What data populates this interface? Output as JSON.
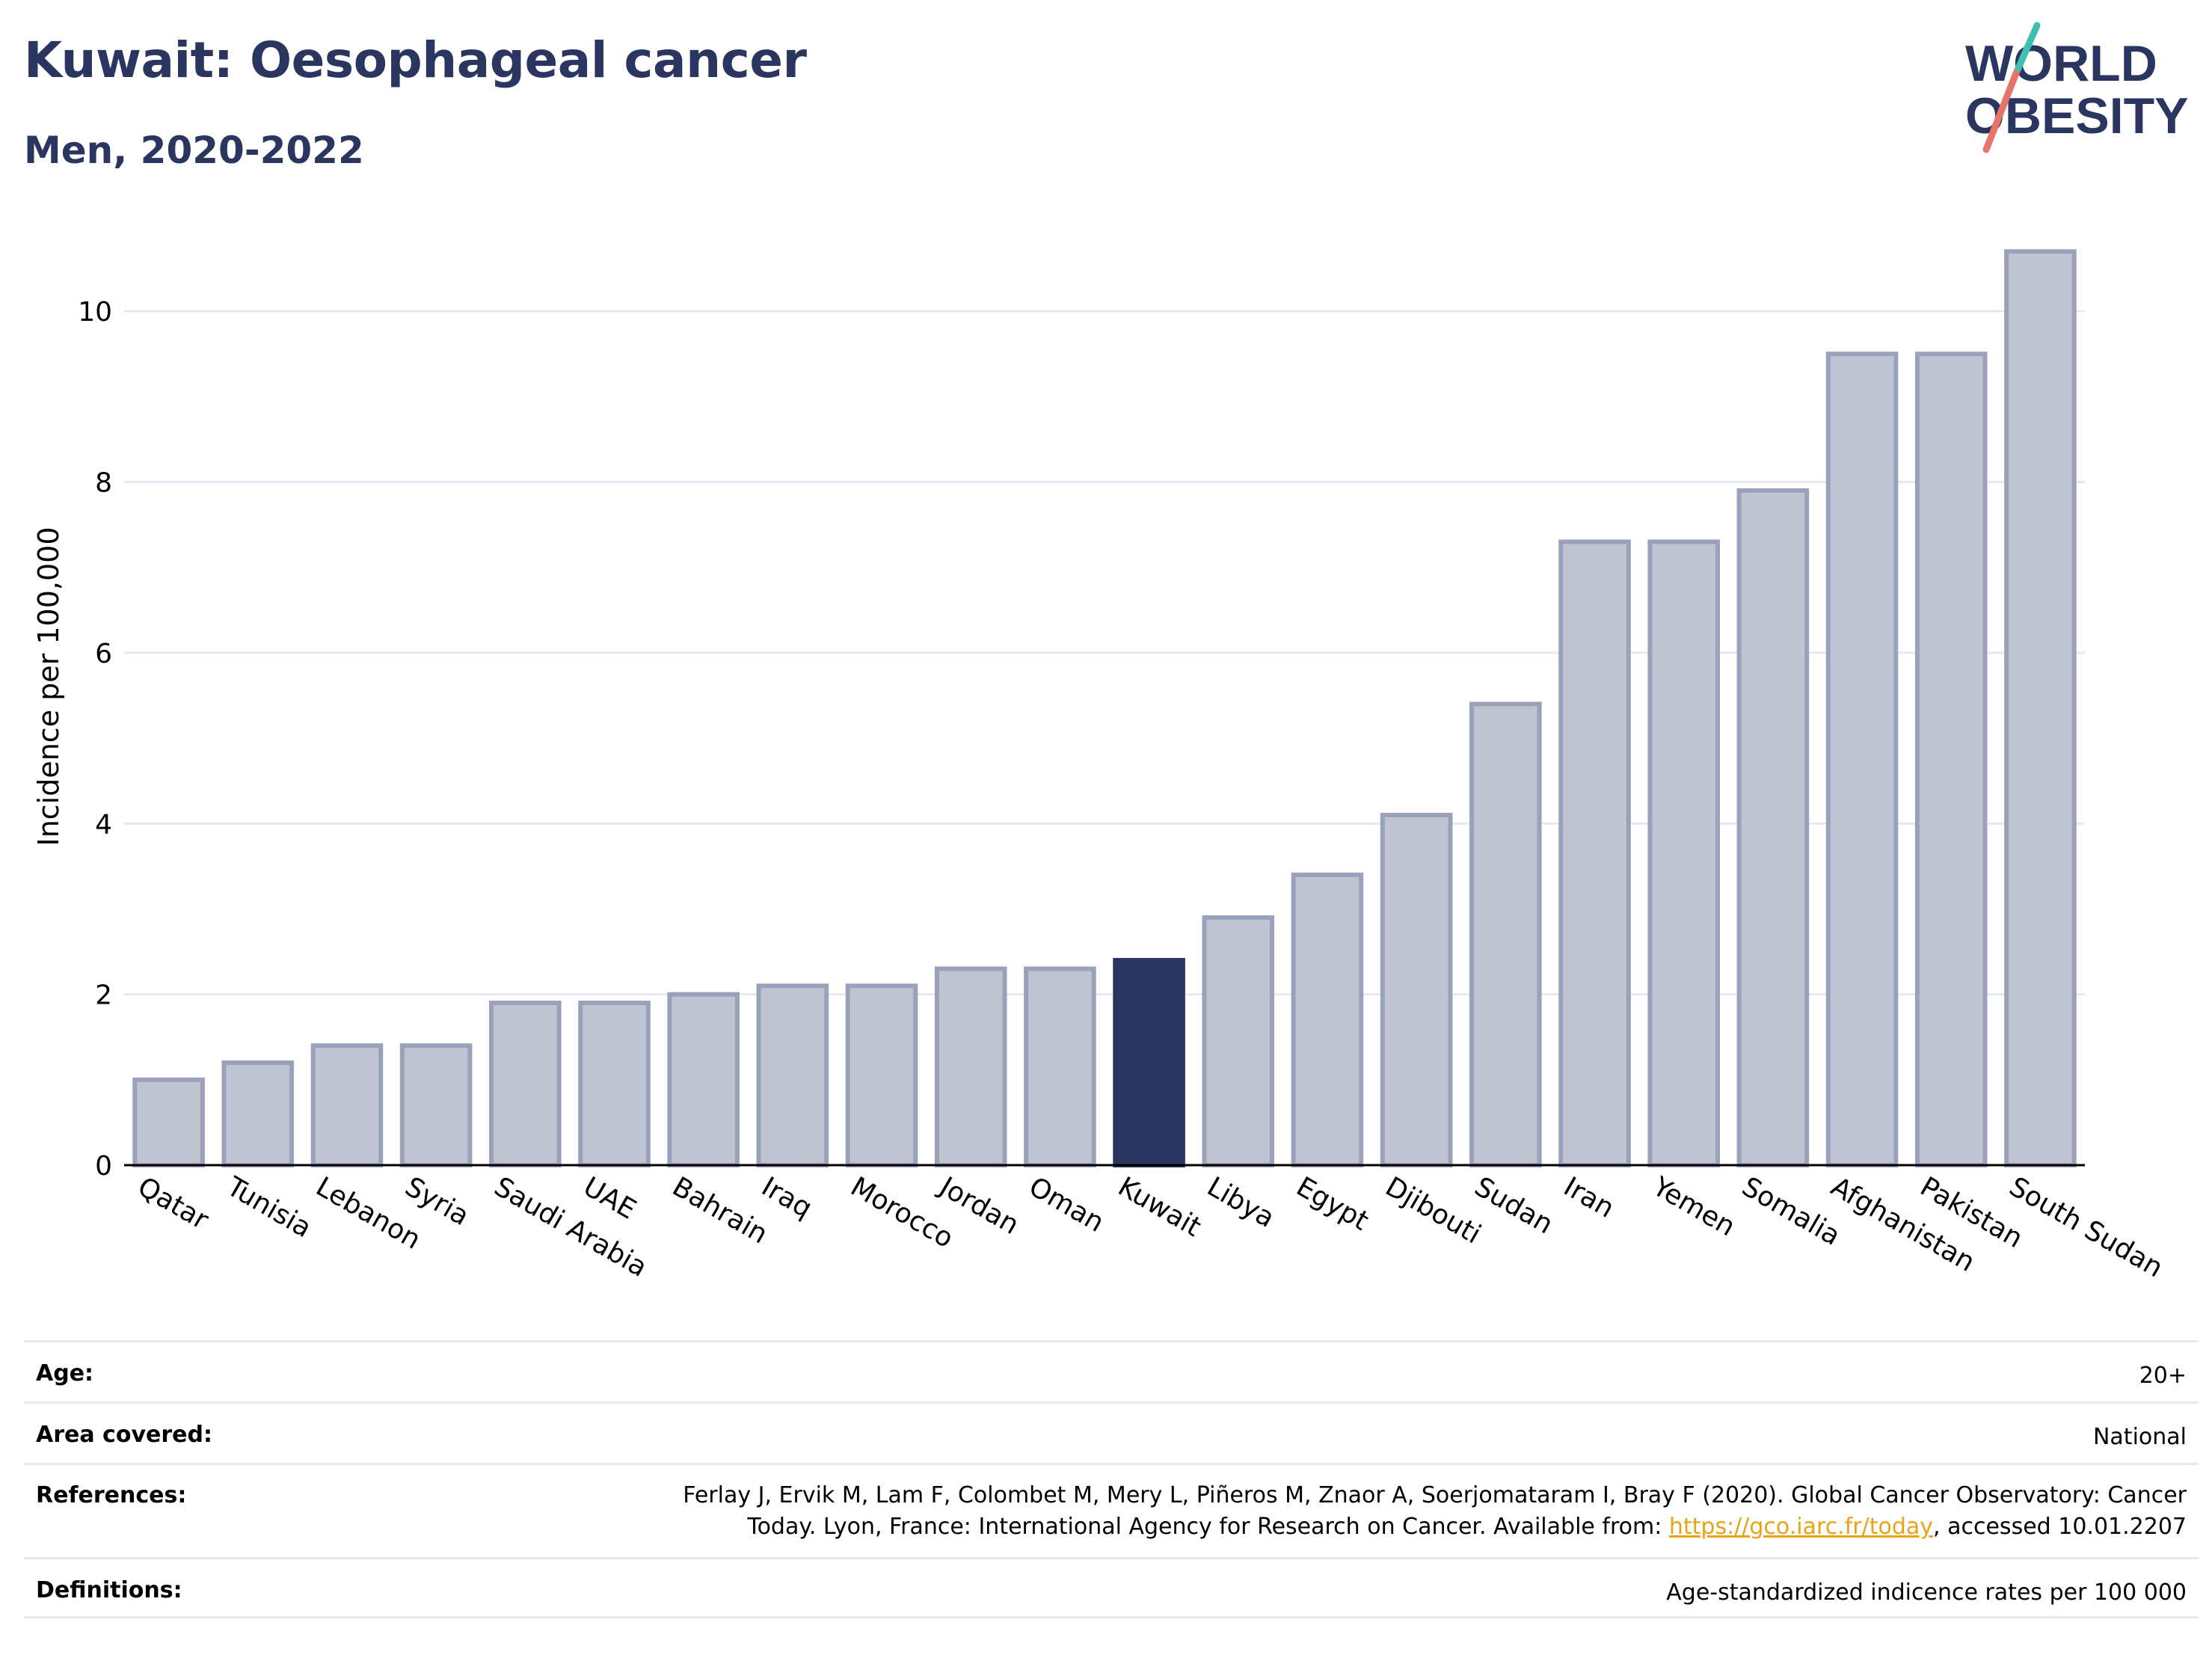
{
  "header": {
    "title": "Kuwait: Oesophageal cancer",
    "subtitle": "Men, 2020-2022"
  },
  "logo": {
    "line1": "WORLD",
    "line2": "OBESITY",
    "text_color": "#2b3660",
    "slash_top_color": "#3fbfb2",
    "slash_bottom_color": "#e8736a"
  },
  "chart_data": {
    "type": "bar",
    "ylabel": "Incidence per 100,000",
    "xlabel": "",
    "ylim": [
      0,
      11
    ],
    "yticks": [
      0,
      2,
      4,
      6,
      8,
      10
    ],
    "grid": true,
    "highlight": "Kuwait",
    "colors": {
      "highlight": "#2b3660",
      "bar_fill": "#c0c4d0",
      "bar_stroke": "#9aa2bb",
      "grid": "#e6e9f0",
      "axis": "#000000"
    },
    "categories": [
      "Qatar",
      "Tunisia",
      "Lebanon",
      "Syria",
      "Saudi Arabia",
      "UAE",
      "Bahrain",
      "Iraq",
      "Morocco",
      "Jordan",
      "Oman",
      "Kuwait",
      "Libya",
      "Egypt",
      "Djibouti",
      "Sudan",
      "Iran",
      "Yemen",
      "Somalia",
      "Afghanistan",
      "Pakistan",
      "South Sudan"
    ],
    "values": [
      1.0,
      1.2,
      1.4,
      1.4,
      1.9,
      1.9,
      2.0,
      2.1,
      2.1,
      2.3,
      2.3,
      2.4,
      2.9,
      3.4,
      4.1,
      5.4,
      7.3,
      7.3,
      7.9,
      9.5,
      9.5,
      10.7
    ]
  },
  "info": {
    "age_label": "Age:",
    "age_value": "20+",
    "area_label": "Area covered:",
    "area_value": "National",
    "references_label": "References:",
    "references_line1": "Ferlay J, Ervik M, Lam F, Colombet M, Mery L, Piñeros M, Znaor A, Soerjomataram I, Bray F (2020). Global Cancer Observatory: Cancer",
    "references_line2_pre": "Today. Lyon, France: International Agency for Research on Cancer. Available from: ",
    "references_link": "https://gco.iarc.fr/today",
    "references_line2_post": ", accessed 10.01.2207",
    "definitions_label": "Definitions:",
    "definitions_value": "Age-standardized indicence rates per 100 000"
  }
}
